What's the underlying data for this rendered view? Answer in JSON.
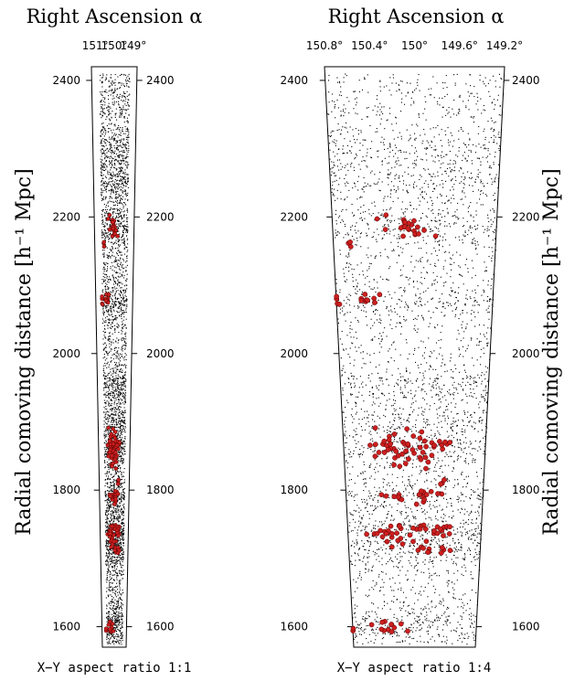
{
  "chart_data": [
    {
      "type": "scatter",
      "panel": "left",
      "title": "Right Ascension α",
      "footer": "X−Y aspect ratio 1:1",
      "ylabel": "Radial comoving distance [h⁻¹ Mpc]",
      "xlim": [
        151.2,
        148.8
      ],
      "ylim": [
        1570,
        2420
      ],
      "top_ticks": [
        151,
        150,
        149
      ],
      "top_tick_labels": [
        "151°",
        "150°",
        "149°"
      ],
      "y_ticks": [
        1600,
        1800,
        2000,
        2200,
        2400
      ],
      "y_tick_labels_left": [
        "1600",
        "1800",
        "2000",
        "2200",
        "2400"
      ],
      "y_tick_labels_right": [
        "1600",
        "1800",
        "2000",
        "2200",
        "2400"
      ],
      "series": [
        {
          "color": "#000000",
          "marker": "dot",
          "values": "field galaxies (~3000 points)"
        },
        {
          "color": "#cc1f1f",
          "marker": "circle",
          "values": "group members"
        }
      ]
    },
    {
      "type": "scatter",
      "panel": "right",
      "title": "Right Ascension α",
      "footer": "X−Y aspect ratio 1:4",
      "ylabel": "Radial comoving distance [h⁻¹ Mpc]",
      "xlim": [
        150.8,
        149.2
      ],
      "ylim": [
        1570,
        2420
      ],
      "top_ticks": [
        150.8,
        150.4,
        150.0,
        149.6,
        149.2
      ],
      "top_tick_labels": [
        "150.8°",
        "150.4°",
        "150°",
        "149.6°",
        "149.2°"
      ],
      "y_ticks": [
        1600,
        1800,
        2000,
        2200,
        2400
      ],
      "y_tick_labels_left": [
        "1600",
        "1800",
        "2000",
        "2200",
        "2400"
      ],
      "y_tick_labels_right": [
        "1600",
        "1800",
        "2000",
        "2200",
        "2400"
      ]
    }
  ],
  "groups": [
    {
      "ra": 150.05,
      "dist": 2185,
      "n": 22,
      "ra_spread": 0.12,
      "d_spread": 8
    },
    {
      "ra": 150.65,
      "dist": 2160,
      "n": 3,
      "ra_spread": 0.03,
      "d_spread": 3
    },
    {
      "ra": 150.48,
      "dist": 2078,
      "n": 10,
      "ra_spread": 0.06,
      "d_spread": 5
    },
    {
      "ra": 150.78,
      "dist": 2078,
      "n": 4,
      "ra_spread": 0.03,
      "d_spread": 4
    },
    {
      "ra": 150.05,
      "dist": 1862,
      "n": 48,
      "ra_spread": 0.2,
      "d_spread": 12
    },
    {
      "ra": 149.7,
      "dist": 1868,
      "n": 6,
      "ra_spread": 0.08,
      "d_spread": 5
    },
    {
      "ra": 150.15,
      "dist": 1790,
      "n": 10,
      "ra_spread": 0.15,
      "d_spread": 5
    },
    {
      "ra": 149.85,
      "dist": 1795,
      "n": 10,
      "ra_spread": 0.1,
      "d_spread": 6
    },
    {
      "ra": 149.65,
      "dist": 1815,
      "n": 3,
      "ra_spread": 0.03,
      "d_spread": 4
    },
    {
      "ra": 150.32,
      "dist": 1736,
      "n": 14,
      "ra_spread": 0.13,
      "d_spread": 5
    },
    {
      "ra": 149.9,
      "dist": 1745,
      "n": 16,
      "ra_spread": 0.22,
      "d_spread": 4
    },
    {
      "ra": 149.65,
      "dist": 1738,
      "n": 6,
      "ra_spread": 0.06,
      "d_spread": 4
    },
    {
      "ra": 149.8,
      "dist": 1712,
      "n": 10,
      "ra_spread": 0.15,
      "d_spread": 4
    },
    {
      "ra": 150.1,
      "dist": 1722,
      "n": 6,
      "ra_spread": 0.1,
      "d_spread": 4
    },
    {
      "ra": 150.3,
      "dist": 1600,
      "n": 12,
      "ra_spread": 0.15,
      "d_spread": 5
    },
    {
      "ra": 150.8,
      "dist": 1597,
      "n": 2,
      "ra_spread": 0.02,
      "d_spread": 2
    }
  ],
  "colors": {
    "field": "#000000",
    "group_fill": "#cc1f1f",
    "group_edge": "#5a0000"
  }
}
